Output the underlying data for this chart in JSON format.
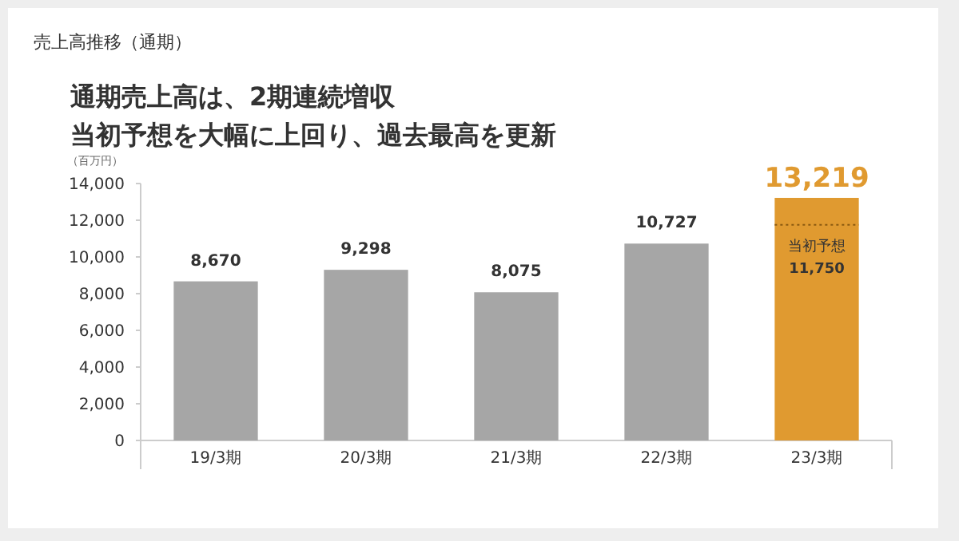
{
  "chart_data": {
    "type": "bar",
    "title": "売上高推移（通期）",
    "annotations": [
      "通期売上高は、2期連続増収",
      "当初予想を大幅に上回り、過去最高を更新"
    ],
    "ylabel": "（百万円）",
    "categories": [
      "19/3期",
      "20/3期",
      "21/3期",
      "22/3期",
      "23/3期"
    ],
    "values": [
      8670,
      9298,
      8075,
      10727,
      13219
    ],
    "value_labels": [
      "8,670",
      "9,298",
      "8,075",
      "10,727",
      "13,219"
    ],
    "colors": [
      "#a6a6a6",
      "#a6a6a6",
      "#a6a6a6",
      "#a6a6a6",
      "#e09a30"
    ],
    "ylim": [
      0,
      14000
    ],
    "yticks": [
      {
        "value": 0,
        "label": "0"
      },
      {
        "value": 2000,
        "label": "2,000"
      },
      {
        "value": 4000,
        "label": "4,000"
      },
      {
        "value": 6000,
        "label": "6,000"
      },
      {
        "value": 8000,
        "label": "8,000"
      },
      {
        "value": 10000,
        "label": "10,000"
      },
      {
        "value": 12000,
        "label": "12,000"
      },
      {
        "value": 14000,
        "label": "14,000"
      }
    ],
    "ref_lines": [
      {
        "axis": "y",
        "value": 11750,
        "label": "当初予想\n11,750",
        "color": "#8a5a10",
        "line_style": "dotted"
      }
    ]
  }
}
